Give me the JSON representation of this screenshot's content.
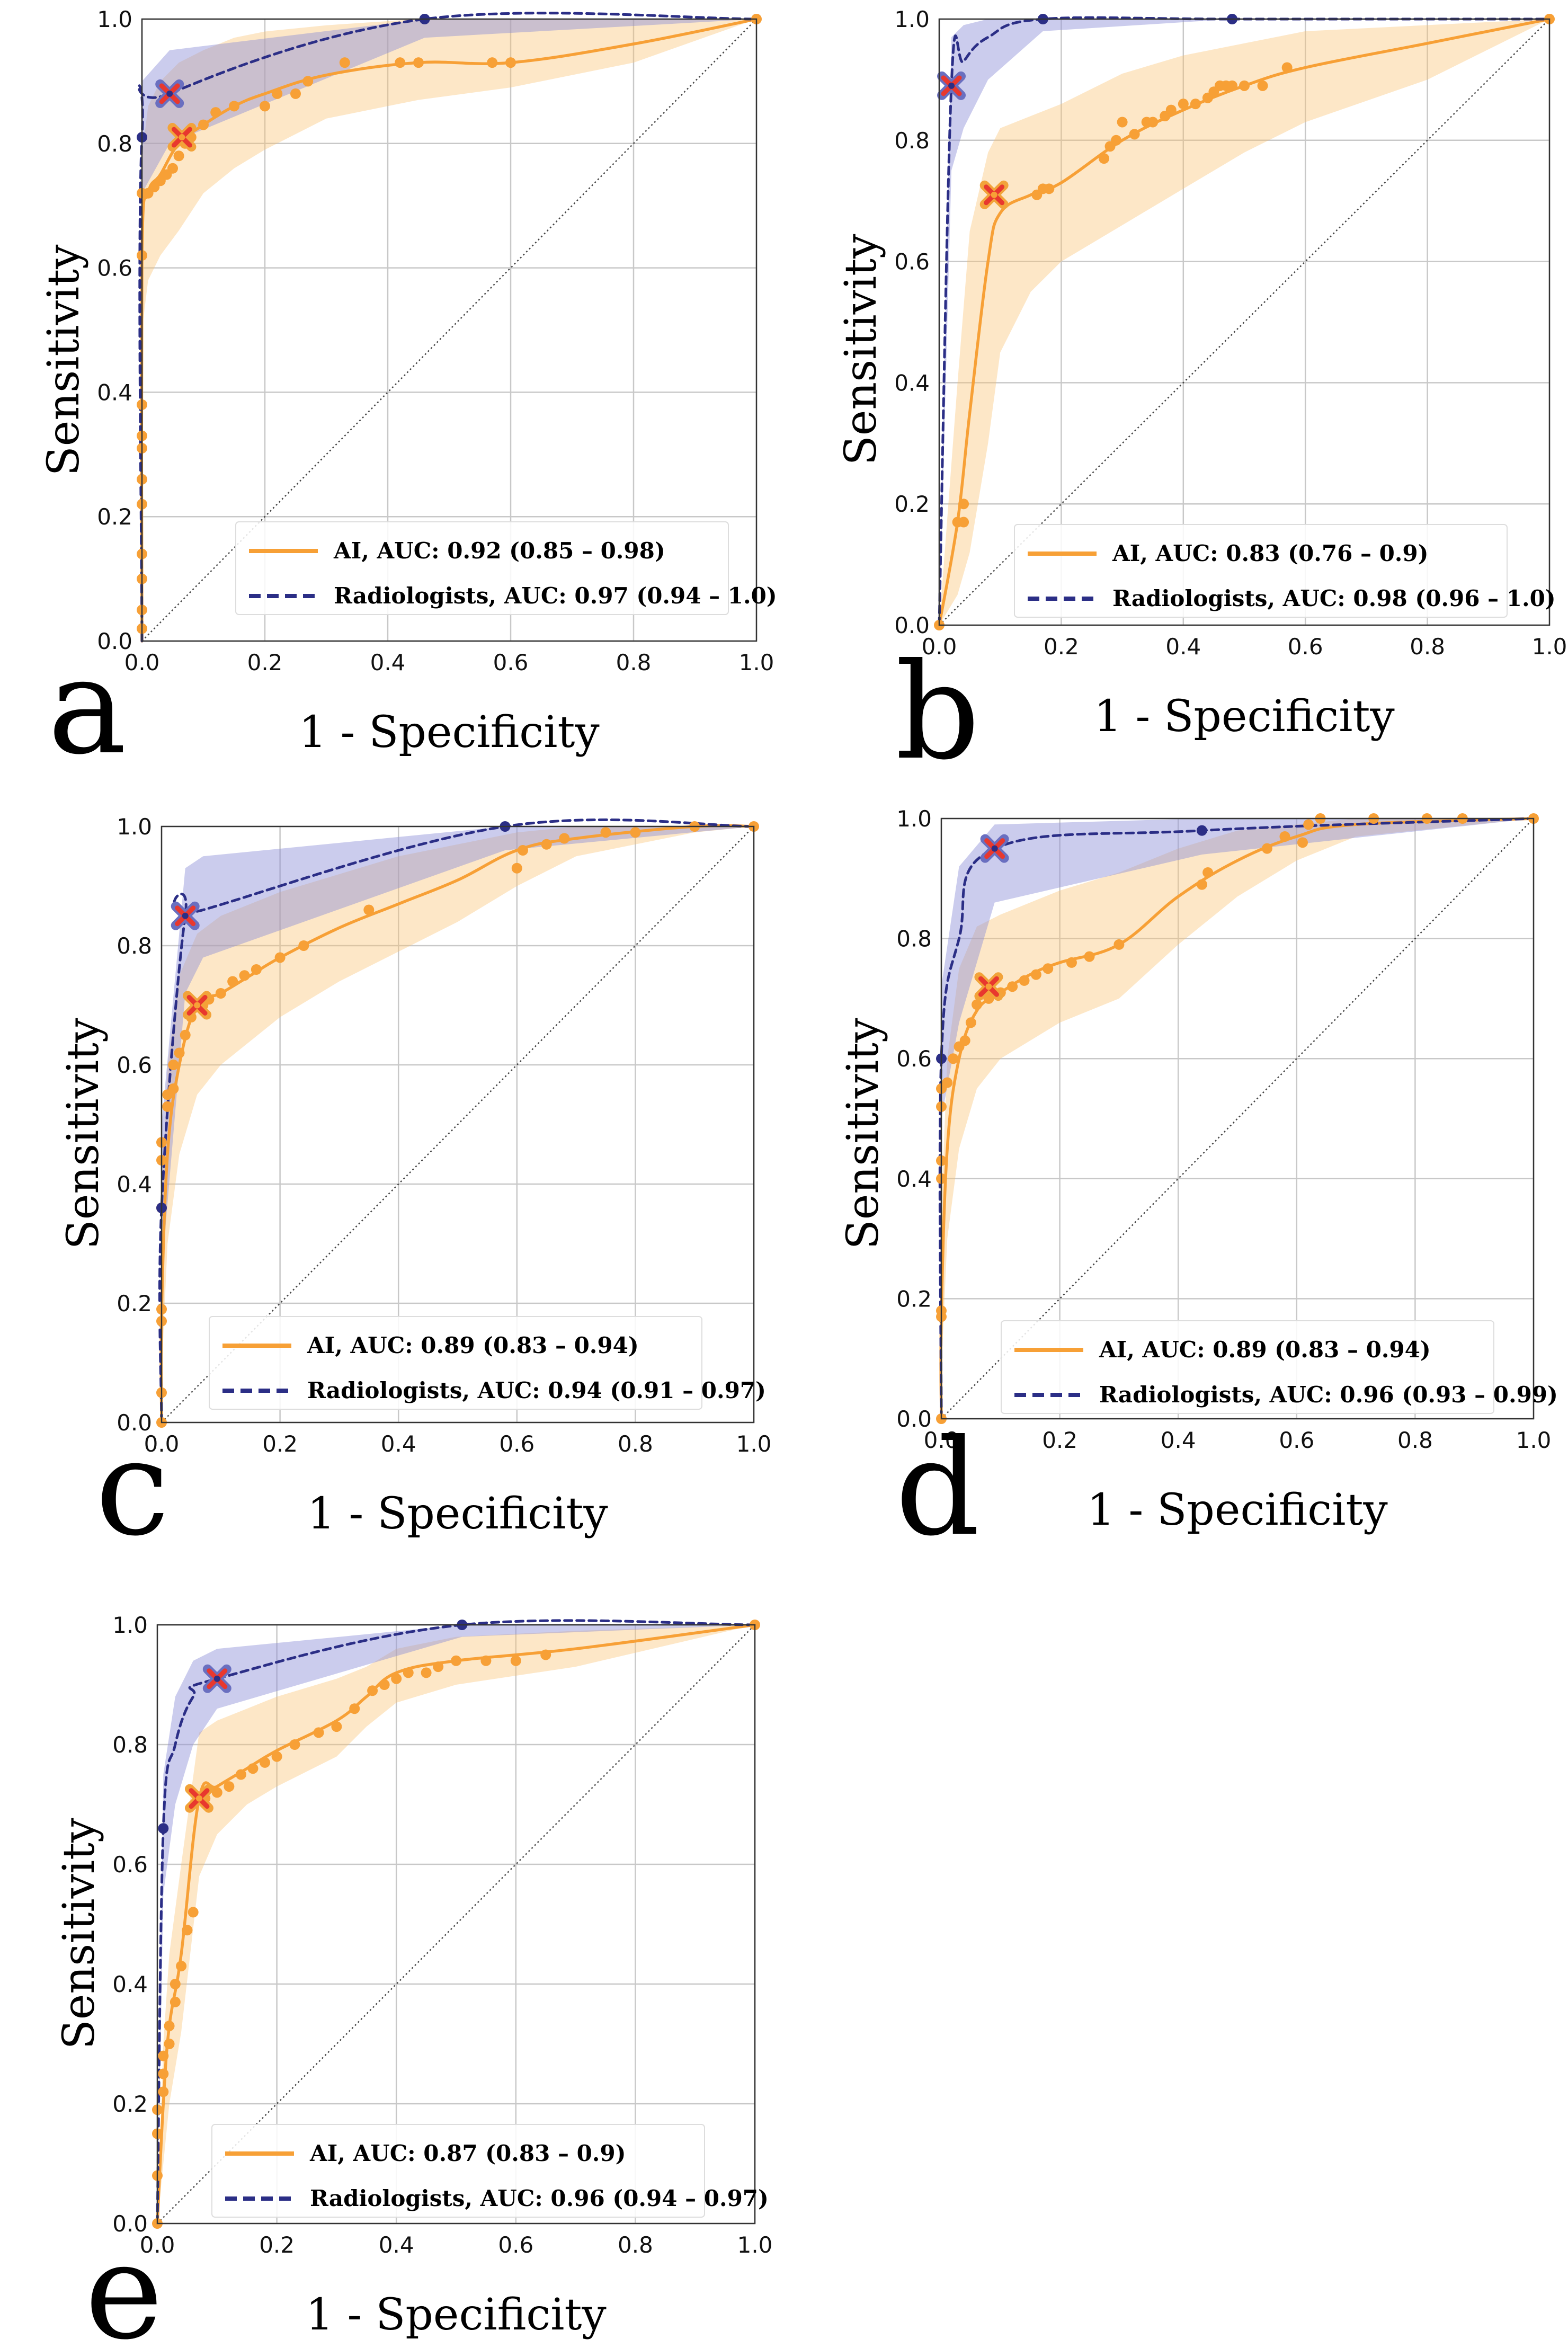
{
  "colors": {
    "ai": "#f7a036",
    "ai_band": "#fbbf6b",
    "radiologists": "#2b2e86",
    "radiologists_band": "#8b8fd6",
    "operating_point_fill": "#e8382e",
    "grid": "#c8c8c8",
    "diagonal": "#444444"
  },
  "chart_data": [
    {
      "panel": "a",
      "type": "line",
      "xlabel": "1 - Specificity",
      "ylabel": "Sensitivity",
      "xlim": [
        0,
        1
      ],
      "ylim": [
        0,
        1
      ],
      "ticks": [
        "0.0",
        "0.2",
        "0.4",
        "0.6",
        "0.8",
        "1.0"
      ],
      "legend": [
        "AI, AUC: 0.92 (0.85 – 0.98)",
        "Radiologists, AUC: 0.97 (0.94 – 1.0)"
      ],
      "series": [
        {
          "name": "AI",
          "curve_x": [
            0,
            0,
            0.01,
            0.03,
            0.06,
            0.1,
            0.15,
            0.2,
            0.3,
            0.45,
            0.6,
            0.8,
            1.0
          ],
          "curve_y": [
            0,
            0.62,
            0.72,
            0.75,
            0.8,
            0.83,
            0.86,
            0.88,
            0.91,
            0.93,
            0.93,
            0.96,
            1.0
          ],
          "band_lower": [
            0,
            0.5,
            0.58,
            0.62,
            0.66,
            0.72,
            0.76,
            0.79,
            0.84,
            0.87,
            0.89,
            0.93,
            1.0
          ],
          "band_upper": [
            0,
            0.78,
            0.86,
            0.9,
            0.93,
            0.95,
            0.97,
            0.98,
            0.99,
            1.0,
            1.0,
            1.0,
            1.0
          ],
          "points_x": [
            0,
            0,
            0,
            0,
            0,
            0,
            0,
            0,
            0,
            0,
            0,
            0.01,
            0.02,
            0.03,
            0.04,
            0.05,
            0.06,
            0.07,
            0.08,
            0.1,
            0.12,
            0.15,
            0.2,
            0.22,
            0.25,
            0.27,
            0.33,
            0.42,
            0.45,
            0.57,
            0.6,
            1.0
          ],
          "points_y": [
            0.02,
            0.05,
            0.1,
            0.14,
            0.22,
            0.26,
            0.31,
            0.33,
            0.38,
            0.62,
            0.72,
            0.72,
            0.73,
            0.74,
            0.75,
            0.76,
            0.78,
            0.8,
            0.81,
            0.83,
            0.85,
            0.86,
            0.86,
            0.88,
            0.88,
            0.9,
            0.93,
            0.93,
            0.93,
            0.93,
            0.93,
            1.0
          ]
        },
        {
          "name": "Radiologists",
          "curve_x": [
            0,
            0,
            0.045,
            0.46,
            1.0
          ],
          "curve_y": [
            0,
            0.81,
            0.88,
            1.0,
            1.0
          ],
          "band_lower": [
            0,
            0.72,
            0.8,
            0.97,
            1.0
          ],
          "band_upper": [
            0,
            0.9,
            0.95,
            1.0,
            1.0
          ],
          "points_x": [
            0,
            0.46
          ],
          "points_y": [
            0.81,
            1.0
          ]
        }
      ],
      "operating_points": [
        {
          "series": "AI",
          "x": 0.065,
          "y": 0.81
        },
        {
          "series": "Radiologists",
          "x": 0.045,
          "y": 0.88
        }
      ]
    },
    {
      "panel": "b",
      "type": "line",
      "xlabel": "1 - Specificity",
      "ylabel": "Sensitivity",
      "xlim": [
        0,
        1
      ],
      "ylim": [
        0,
        1
      ],
      "ticks": [
        "0.0",
        "0.2",
        "0.4",
        "0.6",
        "0.8",
        "1.0"
      ],
      "legend": [
        "AI, AUC: 0.83 (0.76 – 0.9)",
        "Radiologists, AUC: 0.98 (0.96 – 1.0)"
      ],
      "series": [
        {
          "name": "AI",
          "curve_x": [
            0,
            0.03,
            0.05,
            0.08,
            0.1,
            0.15,
            0.2,
            0.3,
            0.4,
            0.5,
            0.6,
            0.8,
            1.0
          ],
          "curve_y": [
            0,
            0.17,
            0.35,
            0.6,
            0.68,
            0.71,
            0.73,
            0.8,
            0.85,
            0.89,
            0.92,
            0.96,
            1.0
          ],
          "band_lower": [
            0,
            0.05,
            0.12,
            0.3,
            0.45,
            0.55,
            0.6,
            0.66,
            0.72,
            0.78,
            0.83,
            0.9,
            1.0
          ],
          "band_upper": [
            0,
            0.4,
            0.65,
            0.78,
            0.82,
            0.84,
            0.86,
            0.91,
            0.94,
            0.96,
            0.98,
            0.99,
            1.0
          ],
          "points_x": [
            0,
            0.03,
            0.04,
            0.04,
            0.16,
            0.17,
            0.18,
            0.27,
            0.28,
            0.29,
            0.3,
            0.32,
            0.34,
            0.35,
            0.37,
            0.38,
            0.4,
            0.42,
            0.44,
            0.45,
            0.46,
            0.47,
            0.48,
            0.5,
            0.53,
            0.57,
            1.0
          ],
          "points_y": [
            0,
            0.17,
            0.2,
            0.17,
            0.71,
            0.72,
            0.72,
            0.77,
            0.79,
            0.8,
            0.83,
            0.81,
            0.83,
            0.83,
            0.84,
            0.85,
            0.86,
            0.86,
            0.87,
            0.88,
            0.89,
            0.89,
            0.89,
            0.89,
            0.89,
            0.92,
            1.0
          ]
        },
        {
          "name": "Radiologists",
          "curve_x": [
            0,
            0.02,
            0.04,
            0.08,
            0.17,
            0.48,
            1.0
          ],
          "curve_y": [
            0,
            0.89,
            0.93,
            0.97,
            1.0,
            1.0,
            1.0
          ],
          "band_lower": [
            0,
            0.75,
            0.82,
            0.9,
            0.98,
            1.0,
            1.0
          ],
          "band_upper": [
            0,
            0.97,
            0.99,
            1.0,
            1.0,
            1.0,
            1.0
          ],
          "points_x": [
            0.17,
            0.48
          ],
          "points_y": [
            1.0,
            1.0
          ]
        }
      ],
      "operating_points": [
        {
          "series": "AI",
          "x": 0.09,
          "y": 0.71
        },
        {
          "series": "Radiologists",
          "x": 0.02,
          "y": 0.89
        }
      ]
    },
    {
      "panel": "c",
      "type": "line",
      "xlabel": "1 - Specificity",
      "ylabel": "Sensitivity",
      "xlim": [
        0,
        1
      ],
      "ylim": [
        0,
        1
      ],
      "ticks": [
        "0.0",
        "0.2",
        "0.4",
        "0.6",
        "0.8",
        "1.0"
      ],
      "legend": [
        "AI, AUC: 0.89 (0.83 – 0.94)",
        "Radiologists, AUC: 0.94 (0.91 – 0.97)"
      ],
      "series": [
        {
          "name": "AI",
          "curve_x": [
            0,
            0,
            0.01,
            0.03,
            0.06,
            0.1,
            0.15,
            0.2,
            0.3,
            0.4,
            0.5,
            0.6,
            0.7,
            0.9,
            1.0
          ],
          "curve_y": [
            0,
            0.18,
            0.45,
            0.6,
            0.7,
            0.72,
            0.75,
            0.78,
            0.83,
            0.87,
            0.91,
            0.96,
            0.98,
            1.0,
            1.0
          ],
          "band_lower": [
            0,
            0.08,
            0.3,
            0.45,
            0.55,
            0.6,
            0.64,
            0.68,
            0.74,
            0.79,
            0.84,
            0.9,
            0.95,
            0.99,
            1.0
          ],
          "band_upper": [
            0,
            0.35,
            0.6,
            0.75,
            0.82,
            0.85,
            0.87,
            0.89,
            0.92,
            0.95,
            0.97,
            0.99,
            1.0,
            1.0,
            1.0
          ],
          "points_x": [
            0,
            0,
            0,
            0,
            0,
            0,
            0,
            0.01,
            0.01,
            0.02,
            0.02,
            0.03,
            0.04,
            0.05,
            0.06,
            0.07,
            0.08,
            0.1,
            0.12,
            0.14,
            0.16,
            0.2,
            0.24,
            0.35,
            0.6,
            0.61,
            0.65,
            0.68,
            0.75,
            0.8,
            0.9,
            1.0
          ],
          "points_y": [
            0,
            0.05,
            0.17,
            0.19,
            0.36,
            0.44,
            0.47,
            0.53,
            0.55,
            0.56,
            0.6,
            0.62,
            0.65,
            0.68,
            0.7,
            0.7,
            0.71,
            0.72,
            0.74,
            0.75,
            0.76,
            0.78,
            0.8,
            0.86,
            0.93,
            0.96,
            0.97,
            0.98,
            0.99,
            0.99,
            1.0,
            1.0
          ]
        },
        {
          "name": "Radiologists",
          "curve_x": [
            0,
            0,
            0.04,
            0.07,
            0.58,
            1.0
          ],
          "curve_y": [
            0,
            0.36,
            0.85,
            0.86,
            1.0,
            1.0
          ],
          "band_lower": [
            0,
            0.25,
            0.72,
            0.78,
            0.96,
            1.0
          ],
          "band_upper": [
            0,
            0.5,
            0.93,
            0.95,
            1.0,
            1.0
          ],
          "points_x": [
            0,
            0.58
          ],
          "points_y": [
            0.36,
            1.0
          ]
        }
      ],
      "operating_points": [
        {
          "series": "AI",
          "x": 0.06,
          "y": 0.7
        },
        {
          "series": "Radiologists",
          "x": 0.04,
          "y": 0.85
        }
      ]
    },
    {
      "panel": "d",
      "type": "line",
      "xlabel": "1 - Specificity",
      "ylabel": "Sensitivity",
      "xlim": [
        0,
        1
      ],
      "ylim": [
        0,
        1
      ],
      "ticks": [
        "0.0",
        "0.2",
        "0.4",
        "0.6",
        "0.8",
        "1.0"
      ],
      "legend": [
        "AI, AUC: 0.89 (0.83 – 0.94)",
        "Radiologists, AUC: 0.96 (0.93 – 0.99)"
      ],
      "series": [
        {
          "name": "AI",
          "curve_x": [
            0,
            0,
            0.01,
            0.03,
            0.06,
            0.1,
            0.15,
            0.2,
            0.3,
            0.4,
            0.5,
            0.6,
            0.7,
            1.0
          ],
          "curve_y": [
            0,
            0.17,
            0.45,
            0.6,
            0.68,
            0.71,
            0.74,
            0.76,
            0.79,
            0.87,
            0.93,
            0.97,
            0.99,
            1.0
          ],
          "band_lower": [
            0,
            0.08,
            0.3,
            0.45,
            0.55,
            0.6,
            0.63,
            0.66,
            0.7,
            0.79,
            0.87,
            0.93,
            0.97,
            1.0
          ],
          "band_upper": [
            0,
            0.35,
            0.6,
            0.75,
            0.82,
            0.84,
            0.86,
            0.88,
            0.91,
            0.95,
            0.98,
            0.99,
            1.0,
            1.0
          ],
          "points_x": [
            0,
            0,
            0,
            0,
            0,
            0,
            0,
            0.01,
            0.02,
            0.03,
            0.04,
            0.05,
            0.06,
            0.08,
            0.1,
            0.12,
            0.14,
            0.16,
            0.18,
            0.22,
            0.25,
            0.3,
            0.44,
            0.45,
            0.55,
            0.58,
            0.61,
            0.62,
            0.64,
            0.73,
            0.82,
            0.88,
            1.0
          ],
          "points_y": [
            0,
            0.17,
            0.18,
            0.4,
            0.43,
            0.52,
            0.55,
            0.56,
            0.6,
            0.62,
            0.63,
            0.66,
            0.69,
            0.7,
            0.71,
            0.72,
            0.73,
            0.74,
            0.75,
            0.76,
            0.77,
            0.79,
            0.89,
            0.91,
            0.95,
            0.97,
            0.96,
            0.99,
            1.0,
            1.0,
            1.0,
            1.0,
            1.0
          ]
        },
        {
          "name": "Radiologists",
          "curve_x": [
            0,
            0,
            0.03,
            0.09,
            0.44,
            1.0
          ],
          "curve_y": [
            0,
            0.6,
            0.8,
            0.95,
            0.98,
            1.0
          ],
          "band_lower": [
            0,
            0.5,
            0.66,
            0.86,
            0.94,
            1.0
          ],
          "band_upper": [
            0,
            0.72,
            0.92,
            0.99,
            1.0,
            1.0
          ],
          "points_x": [
            0,
            0.44
          ],
          "points_y": [
            0.6,
            0.98
          ]
        }
      ],
      "operating_points": [
        {
          "series": "AI",
          "x": 0.08,
          "y": 0.72
        },
        {
          "series": "Radiologists",
          "x": 0.09,
          "y": 0.95
        }
      ]
    },
    {
      "panel": "e",
      "type": "line",
      "xlabel": "1 - Specificity",
      "ylabel": "Sensitivity",
      "xlim": [
        0,
        1
      ],
      "ylim": [
        0,
        1
      ],
      "ticks": [
        "0.0",
        "0.2",
        "0.4",
        "0.6",
        "0.8",
        "1.0"
      ],
      "legend": [
        "AI, AUC: 0.87 (0.83 – 0.9)",
        "Radiologists, AUC: 0.96 (0.94 – 0.97)"
      ],
      "series": [
        {
          "name": "AI",
          "curve_x": [
            0,
            0.01,
            0.02,
            0.04,
            0.07,
            0.1,
            0.15,
            0.2,
            0.3,
            0.35,
            0.4,
            0.5,
            0.7,
            1.0
          ],
          "curve_y": [
            0,
            0.2,
            0.33,
            0.45,
            0.71,
            0.73,
            0.76,
            0.79,
            0.84,
            0.88,
            0.92,
            0.94,
            0.96,
            1.0
          ],
          "band_lower": [
            0,
            0.1,
            0.2,
            0.32,
            0.58,
            0.65,
            0.7,
            0.73,
            0.78,
            0.83,
            0.87,
            0.9,
            0.93,
            1.0
          ],
          "band_upper": [
            0,
            0.3,
            0.45,
            0.6,
            0.82,
            0.84,
            0.86,
            0.88,
            0.91,
            0.93,
            0.96,
            0.98,
            0.99,
            1.0
          ],
          "points_x": [
            0,
            0,
            0,
            0,
            0.01,
            0.01,
            0.01,
            0.02,
            0.02,
            0.03,
            0.03,
            0.04,
            0.05,
            0.06,
            0.07,
            0.08,
            0.1,
            0.12,
            0.14,
            0.16,
            0.18,
            0.2,
            0.23,
            0.27,
            0.3,
            0.33,
            0.36,
            0.38,
            0.4,
            0.42,
            0.45,
            0.47,
            0.5,
            0.55,
            0.6,
            0.65,
            1.0
          ],
          "points_y": [
            0,
            0.08,
            0.15,
            0.19,
            0.22,
            0.25,
            0.28,
            0.3,
            0.33,
            0.37,
            0.4,
            0.43,
            0.49,
            0.52,
            0.71,
            0.71,
            0.72,
            0.73,
            0.75,
            0.76,
            0.77,
            0.78,
            0.8,
            0.82,
            0.83,
            0.86,
            0.89,
            0.9,
            0.91,
            0.92,
            0.92,
            0.93,
            0.94,
            0.94,
            0.94,
            0.95,
            1.0
          ]
        },
        {
          "name": "Radiologists",
          "curve_x": [
            0,
            0.01,
            0.03,
            0.06,
            0.1,
            0.51,
            1.0
          ],
          "curve_y": [
            0,
            0.66,
            0.8,
            0.88,
            0.91,
            1.0,
            1.0
          ],
          "band_lower": [
            0,
            0.55,
            0.7,
            0.8,
            0.86,
            0.98,
            1.0
          ],
          "band_upper": [
            0,
            0.75,
            0.88,
            0.94,
            0.96,
            1.0,
            1.0
          ],
          "points_x": [
            0.01,
            0.51
          ],
          "points_y": [
            0.66,
            1.0
          ]
        }
      ],
      "operating_points": [
        {
          "series": "AI",
          "x": 0.07,
          "y": 0.71
        },
        {
          "series": "Radiologists",
          "x": 0.1,
          "y": 0.91
        }
      ]
    }
  ]
}
